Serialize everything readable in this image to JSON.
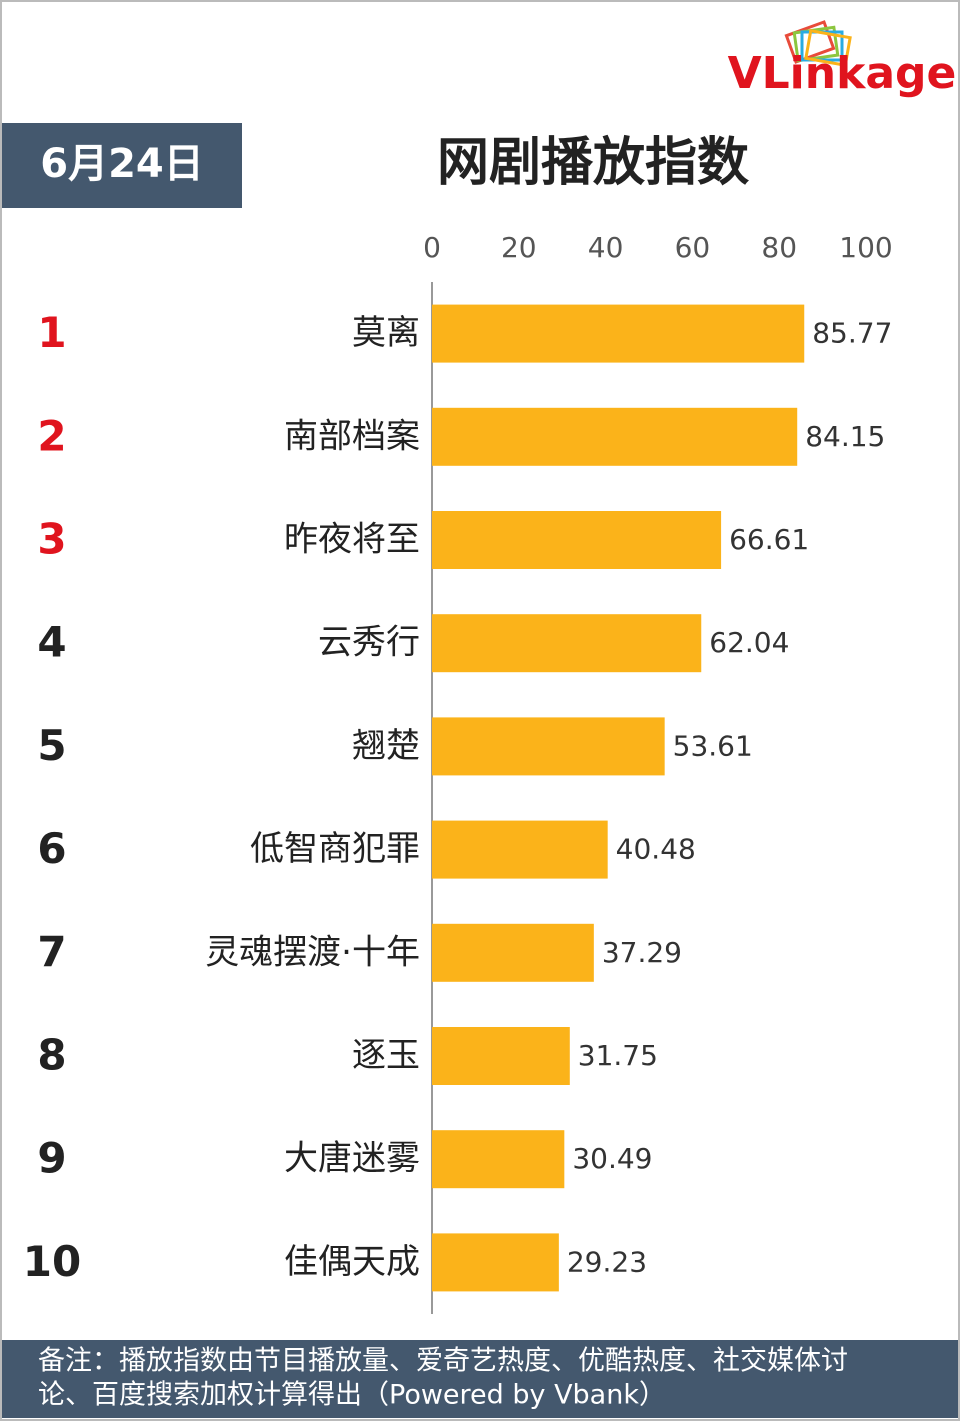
{
  "chart_data": {
    "type": "bar",
    "orientation": "horizontal",
    "title": "网剧播放指数",
    "date": "6月24日",
    "logo": "VLinkage",
    "ranks": [
      1,
      2,
      3,
      4,
      5,
      6,
      7,
      8,
      9,
      10
    ],
    "highlight_ranks": 3,
    "highlight_color": "#e0141e",
    "categories": [
      "莫离",
      "南部档案",
      "昨夜将至",
      "云秀行",
      "翘楚",
      "低智商犯罪",
      "灵魂摆渡·十年",
      "逐玉",
      "大唐迷雾",
      "佳偶天成"
    ],
    "values": [
      85.77,
      84.15,
      66.61,
      62.04,
      53.61,
      40.48,
      37.29,
      31.75,
      30.49,
      29.23
    ],
    "color": "#fbb31a",
    "xlim": [
      0,
      100
    ],
    "xticks": [
      0,
      20,
      40,
      60,
      80,
      100
    ],
    "grid": false,
    "note": [
      "备注：播放指数由节目播放量、爱奇艺热度、优酷热度、社交媒体讨",
      "论、百度搜索加权计算得出（Powered by Vbank）"
    ]
  }
}
